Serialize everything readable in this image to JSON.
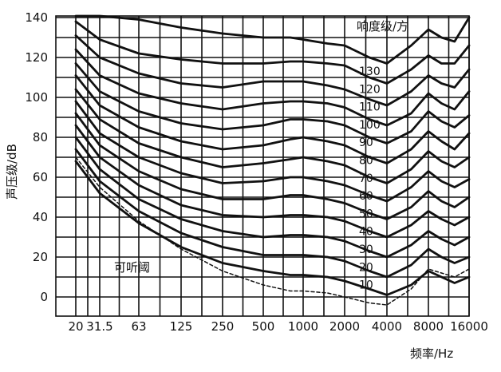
{
  "chart_data": {
    "type": "line",
    "xlabel": "频率/Hz",
    "ylabel": "声压级/dB",
    "legend_title": "响度级/方",
    "threshold_label": "可听阈",
    "x_scale": "log",
    "x_ticks": [
      {
        "value": 20,
        "label": "20"
      },
      {
        "value": 31.5,
        "label": "31.5"
      },
      {
        "value": 63,
        "label": "63"
      },
      {
        "value": 125,
        "label": "125"
      },
      {
        "value": 250,
        "label": "250"
      },
      {
        "value": 500,
        "label": "500"
      },
      {
        "value": 1000,
        "label": "1000"
      },
      {
        "value": 2000,
        "label": "2000"
      },
      {
        "value": 4000,
        "label": "4000"
      },
      {
        "value": 8000,
        "label": "8000"
      },
      {
        "value": 16000,
        "label": "16000"
      }
    ],
    "y_ticks": [
      0,
      20,
      40,
      60,
      80,
      100,
      120,
      140
    ],
    "ylim": [
      -10,
      140
    ],
    "xlim": [
      20,
      16000
    ],
    "grid": true,
    "level_labels": [
      "130",
      "120",
      "110",
      "100",
      "90",
      "80",
      "70",
      "60",
      "50",
      "40",
      "30",
      "20",
      "10"
    ],
    "series": [
      {
        "name": "130",
        "x": [
          20,
          31.5,
          63,
          125,
          250,
          500,
          800,
          1000,
          1500,
          2000,
          3000,
          4000,
          6000,
          8000,
          10000,
          12500,
          16000
        ],
        "y": [
          142,
          142,
          139,
          135,
          132,
          130,
          130,
          129,
          127,
          126,
          120,
          117,
          126,
          134,
          130,
          128,
          140
        ]
      },
      {
        "name": "120",
        "x": [
          20,
          31.5,
          63,
          125,
          250,
          500,
          800,
          1000,
          1500,
          2000,
          3000,
          4000,
          6000,
          8000,
          10000,
          12500,
          16000
        ],
        "y": [
          138,
          129,
          122,
          119,
          117,
          117,
          118,
          118,
          117,
          116,
          110,
          107,
          114,
          121,
          117,
          117,
          126
        ]
      },
      {
        "name": "110",
        "x": [
          20,
          31.5,
          63,
          125,
          250,
          500,
          800,
          1000,
          1500,
          2000,
          3000,
          4000,
          6000,
          8000,
          10000,
          12500,
          16000
        ],
        "y": [
          131,
          120,
          112,
          107,
          105,
          108,
          108,
          108,
          106,
          104,
          99,
          96,
          103,
          111,
          107,
          105,
          114
        ]
      },
      {
        "name": "100",
        "x": [
          20,
          31.5,
          63,
          125,
          250,
          500,
          800,
          1000,
          1500,
          2000,
          3000,
          4000,
          6000,
          8000,
          10000,
          12500,
          16000
        ],
        "y": [
          124,
          111,
          102,
          97,
          94,
          97,
          98,
          98,
          97,
          95,
          89,
          86,
          92,
          102,
          97,
          94,
          103
        ]
      },
      {
        "name": "90",
        "x": [
          20,
          31.5,
          63,
          125,
          250,
          500,
          800,
          1000,
          1500,
          2000,
          3000,
          4000,
          6000,
          8000,
          10000,
          12500,
          16000
        ],
        "y": [
          117,
          103,
          93,
          87,
          84,
          86,
          89,
          89,
          88,
          86,
          80,
          77,
          83,
          93,
          88,
          85,
          91
        ]
      },
      {
        "name": "80",
        "x": [
          20,
          31.5,
          63,
          125,
          250,
          500,
          800,
          1000,
          1500,
          2000,
          3000,
          4000,
          6000,
          8000,
          10000,
          12500,
          16000
        ],
        "y": [
          111,
          96,
          85,
          78,
          74,
          76,
          79,
          80,
          78,
          76,
          70,
          67,
          74,
          83,
          78,
          74,
          82
        ]
      },
      {
        "name": "70",
        "x": [
          20,
          31.5,
          63,
          125,
          250,
          500,
          800,
          1000,
          1500,
          2000,
          3000,
          4000,
          6000,
          8000,
          10000,
          12500,
          16000
        ],
        "y": [
          104,
          89,
          77,
          70,
          65,
          67,
          69,
          70,
          68,
          66,
          60,
          57,
          64,
          73,
          68,
          65,
          70
        ]
      },
      {
        "name": "60",
        "x": [
          20,
          31.5,
          63,
          125,
          250,
          500,
          800,
          1000,
          1500,
          2000,
          3000,
          4000,
          6000,
          8000,
          10000,
          12500,
          16000
        ],
        "y": [
          98,
          82,
          70,
          62,
          57,
          58,
          60,
          60,
          58,
          56,
          51,
          48,
          55,
          63,
          58,
          55,
          59
        ]
      },
      {
        "name": "50",
        "x": [
          20,
          31.5,
          63,
          125,
          250,
          500,
          800,
          1000,
          1500,
          2000,
          3000,
          4000,
          6000,
          8000,
          10000,
          12500,
          16000
        ],
        "y": [
          92,
          76,
          63,
          54,
          49,
          49,
          51,
          51,
          49,
          47,
          42,
          39,
          45,
          53,
          48,
          45,
          50
        ]
      },
      {
        "name": "40",
        "x": [
          20,
          31.5,
          63,
          125,
          250,
          500,
          800,
          1000,
          1500,
          2000,
          3000,
          4000,
          6000,
          8000,
          10000,
          12500,
          16000
        ],
        "y": [
          86,
          70,
          56,
          46,
          41,
          40,
          41,
          41,
          40,
          38,
          33,
          30,
          36,
          43,
          39,
          36,
          40
        ]
      },
      {
        "name": "30",
        "x": [
          20,
          31.5,
          63,
          125,
          250,
          500,
          800,
          1000,
          1500,
          2000,
          3000,
          4000,
          6000,
          8000,
          10000,
          12500,
          16000
        ],
        "y": [
          80,
          64,
          49,
          39,
          33,
          30,
          31,
          31,
          30,
          28,
          23,
          20,
          26,
          33,
          29,
          26,
          30
        ]
      },
      {
        "name": "20",
        "x": [
          20,
          31.5,
          63,
          125,
          250,
          500,
          800,
          1000,
          1500,
          2000,
          3000,
          4000,
          6000,
          8000,
          10000,
          12500,
          16000
        ],
        "y": [
          74,
          58,
          43,
          32,
          25,
          21,
          21,
          21,
          20,
          18,
          13,
          10,
          16,
          24,
          20,
          17,
          20
        ]
      },
      {
        "name": "10",
        "x": [
          20,
          31.5,
          63,
          125,
          250,
          500,
          800,
          1000,
          1500,
          2000,
          3000,
          4000,
          6000,
          8000,
          10000,
          12500,
          16000
        ],
        "y": [
          68,
          52,
          37,
          25,
          17,
          13,
          11,
          11,
          10,
          8,
          4,
          1,
          6,
          13,
          10,
          7,
          10
        ]
      },
      {
        "name": "可听阈",
        "style": "dashed",
        "x": [
          20,
          31.5,
          63,
          125,
          250,
          500,
          800,
          1000,
          1500,
          2000,
          3000,
          4000,
          6000,
          8000,
          10000,
          12500,
          16000
        ],
        "y": [
          70,
          55,
          38,
          24,
          13,
          6,
          3,
          3,
          2,
          0,
          -3,
          -4,
          4,
          14,
          12,
          10,
          14
        ]
      }
    ]
  }
}
